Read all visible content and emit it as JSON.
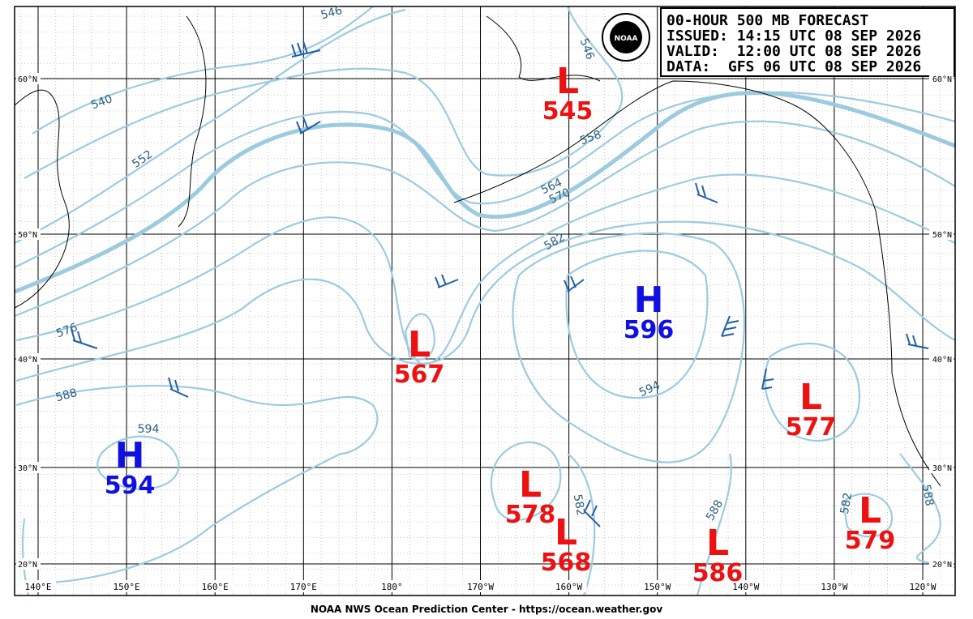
{
  "header": {
    "lines": [
      "00-HOUR 500 MB FORECAST",
      "ISSUED: 14:15 UTC 08 SEP 2026",
      "VALID:  12:00 UTC 08 SEP 2026",
      "DATA:  GFS 06 UTC 08 SEP 2026"
    ],
    "logo": "NOAA"
  },
  "centers": [
    {
      "kind": "L",
      "value": 545
    },
    {
      "kind": "L",
      "value": 567
    },
    {
      "kind": "H",
      "value": 596
    },
    {
      "kind": "L",
      "value": 577
    },
    {
      "kind": "H",
      "value": 594
    },
    {
      "kind": "L",
      "value": 578
    },
    {
      "kind": "L",
      "value": 568
    },
    {
      "kind": "L",
      "value": 586
    },
    {
      "kind": "L",
      "value": 579
    }
  ],
  "contour_labels": [
    546,
    540,
    552,
    558,
    564,
    570,
    576,
    582,
    588,
    594,
    594,
    582,
    588,
    588,
    546,
    582
  ],
  "lat_labels": [
    "60°N",
    "50°N",
    "40°N",
    "30°N",
    "20°N"
  ],
  "lon_labels": [
    "140°E",
    "150°E",
    "160°E",
    "170°E",
    "180°",
    "170°W",
    "160°W",
    "150°W",
    "140°W",
    "130°W",
    "120°W"
  ],
  "footer": "NOAA NWS Ocean Prediction Center - https://ocean.weather.gov"
}
